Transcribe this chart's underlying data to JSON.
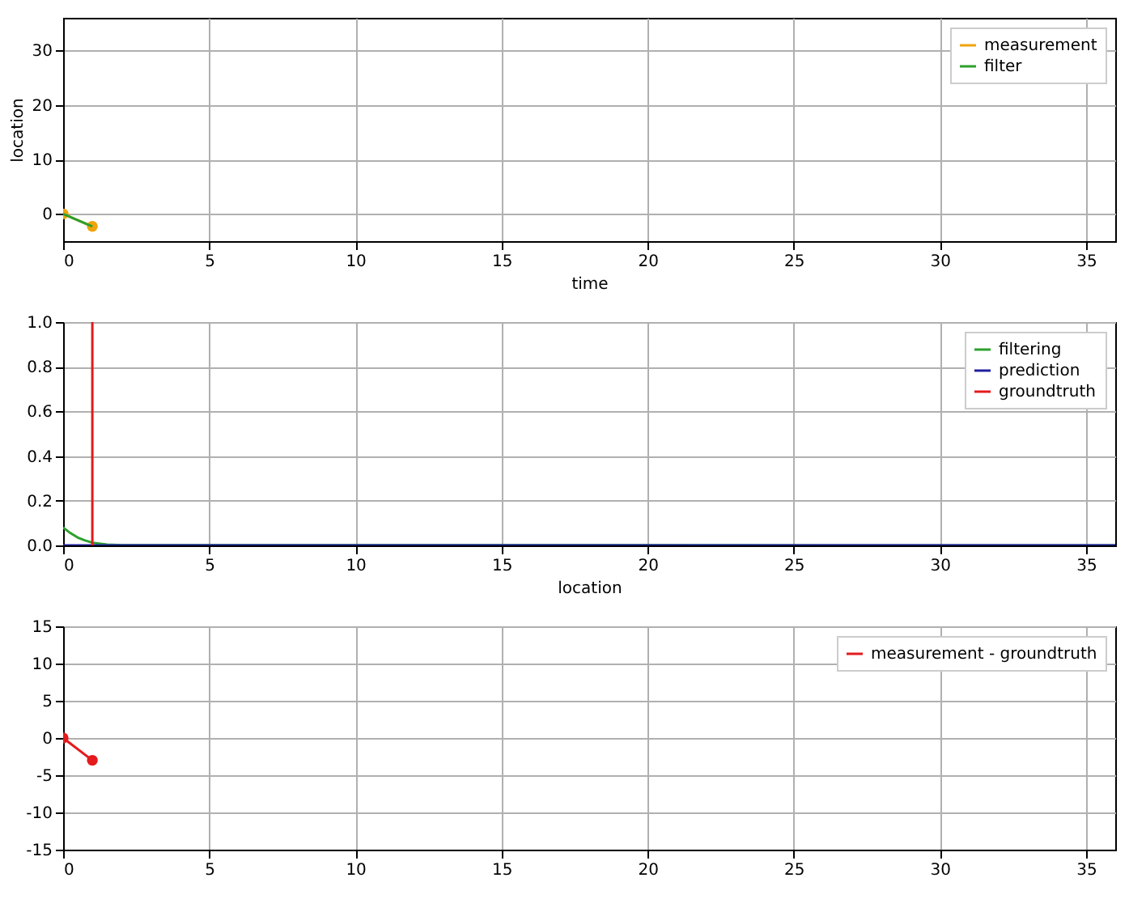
{
  "chart_data": [
    {
      "type": "line",
      "xlabel": "time",
      "ylabel": "location",
      "xlim": [
        0,
        36
      ],
      "xticks": [
        0,
        5,
        10,
        15,
        20,
        25,
        30,
        35
      ],
      "ylim": [
        -5,
        36
      ],
      "yticks": [
        0,
        10,
        20,
        30
      ],
      "grid": true,
      "legend": "top right",
      "series": [
        {
          "name": "measurement",
          "color": "#f0a30a",
          "marker": "circle",
          "x": [
            0,
            1
          ],
          "values": [
            0,
            -2.3
          ]
        },
        {
          "name": "filter",
          "color": "#2ca02c",
          "marker": "none",
          "x": [
            0,
            1
          ],
          "values": [
            0,
            -2.3
          ]
        }
      ]
    },
    {
      "type": "line",
      "xlabel": "location",
      "xlim": [
        0,
        36
      ],
      "xticks": [
        0,
        5,
        10,
        15,
        20,
        25,
        30,
        35
      ],
      "ylim": [
        0,
        1
      ],
      "yticks": [
        {
          "value": 0,
          "label": "0.0"
        },
        0.2,
        0.4,
        0.6,
        0.8,
        {
          "value": 1,
          "label": "1.0"
        }
      ],
      "grid": true,
      "legend": "top right",
      "series": [
        {
          "name": "filtering",
          "color": "#2ca02c",
          "marker": "none",
          "x": [
            0,
            0.25,
            0.5,
            0.75,
            1,
            1.5,
            2,
            36
          ],
          "values": [
            0.08,
            0.055,
            0.035,
            0.022,
            0.012,
            0.004,
            0.001,
            0
          ]
        },
        {
          "name": "prediction",
          "color": "#1f1fa0",
          "marker": "none",
          "x": [
            0,
            36
          ],
          "values": [
            0,
            0
          ]
        },
        {
          "name": "groundtruth",
          "color": "#e41a1c",
          "marker": "none",
          "x": [
            1,
            1
          ],
          "values": [
            0,
            1
          ]
        }
      ]
    },
    {
      "type": "line",
      "xlim": [
        0,
        36
      ],
      "xticks": [
        0,
        5,
        10,
        15,
        20,
        25,
        30,
        35
      ],
      "ylim": [
        -15,
        15
      ],
      "yticks": [
        -15,
        -10,
        -5,
        0,
        5,
        10,
        15
      ],
      "grid": true,
      "legend": "top right",
      "series": [
        {
          "name": "measurement - groundtruth",
          "color": "#e41a1c",
          "marker": "circle",
          "x": [
            0,
            1
          ],
          "values": [
            0,
            -3
          ]
        }
      ]
    }
  ]
}
